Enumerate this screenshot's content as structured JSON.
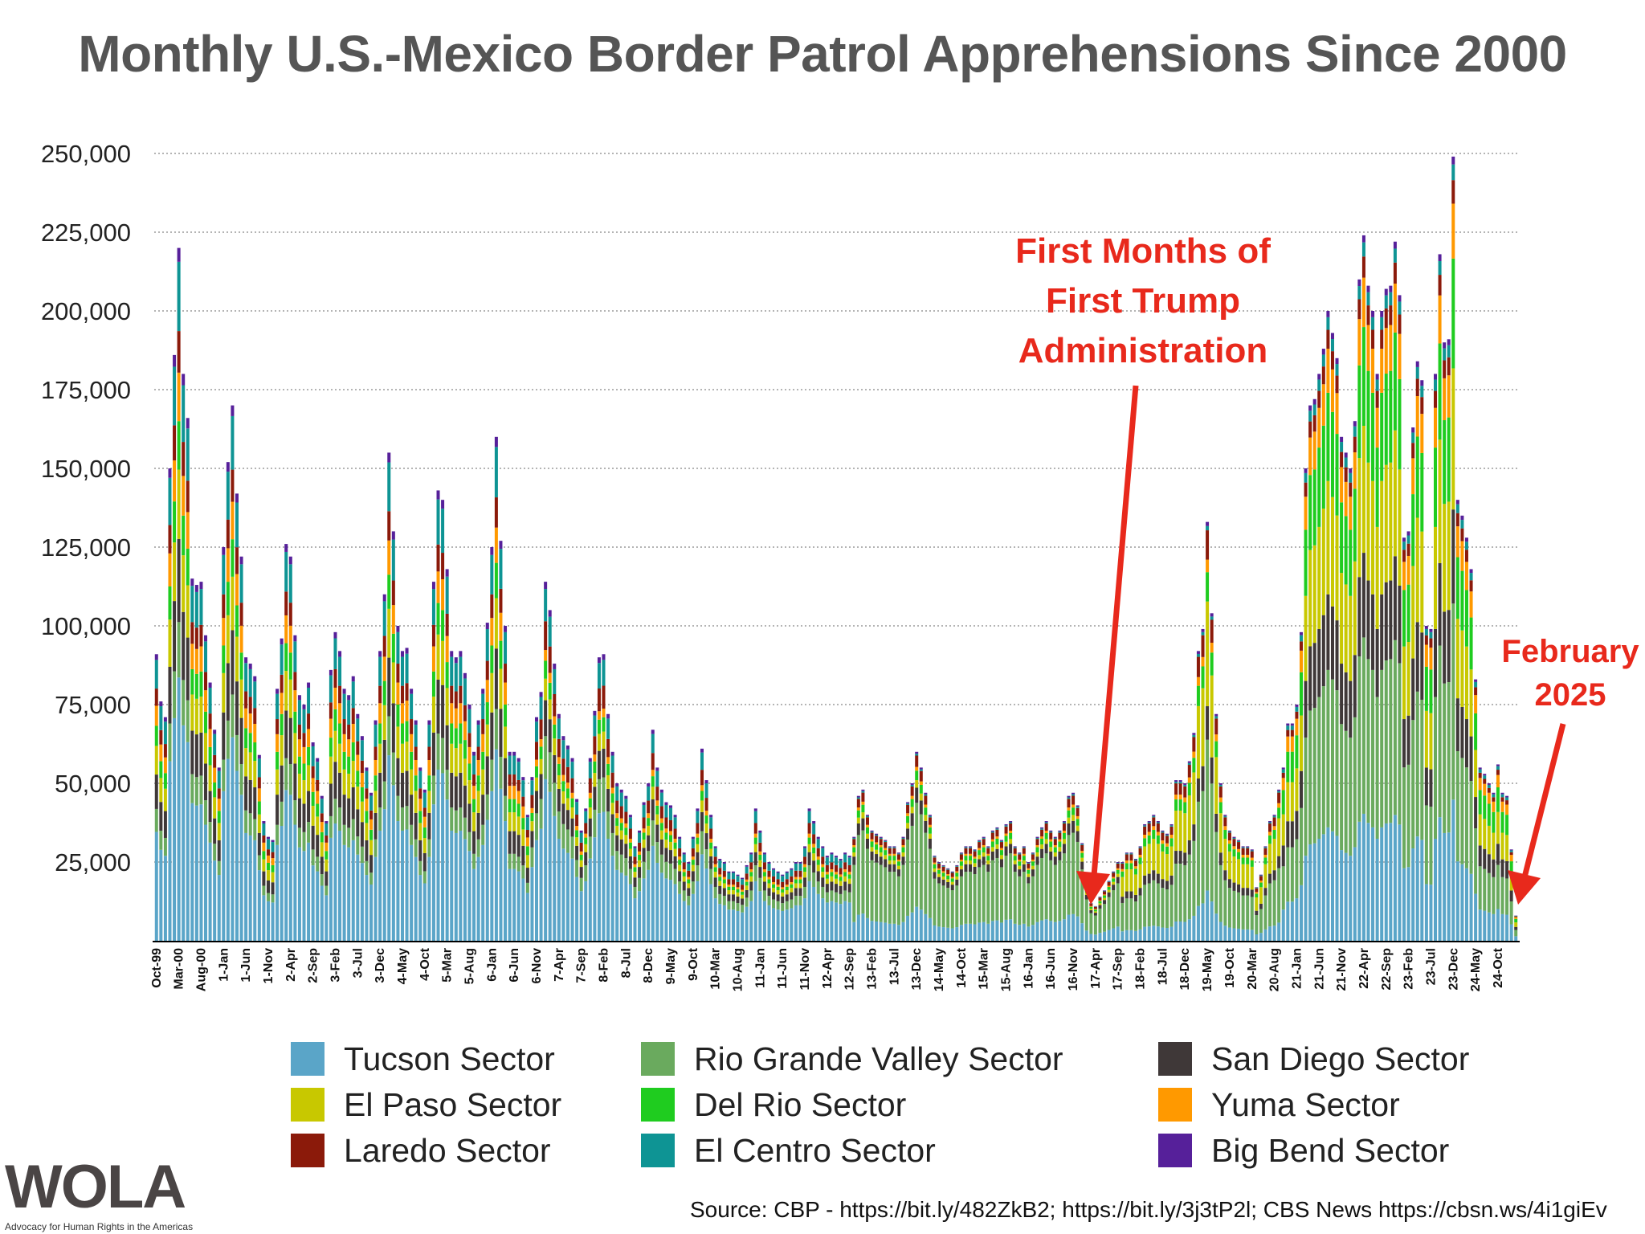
{
  "title": "Monthly U.S.-Mexico Border Patrol Apprehensions Since 2000",
  "annotations": {
    "trump_lines": [
      "First Months of",
      "First Trump",
      "Administration"
    ],
    "feb_lines": [
      "February",
      "2025"
    ]
  },
  "source": "Source: CBP - https://bit.ly/482ZkB2; https://bit.ly/3j3tP2l; CBS News https://cbsn.ws/4i1giEv",
  "logo": {
    "text": "WOLA",
    "subtitle": "Advocacy for Human Rights in the Americas"
  },
  "chart_data": {
    "type": "bar",
    "stacked": true,
    "title": "Monthly U.S.-Mexico Border Patrol Apprehensions Since 2000",
    "xlabel": "",
    "ylabel": "",
    "ylim": [
      0,
      250000
    ],
    "yticks": [
      25000,
      50000,
      75000,
      100000,
      125000,
      150000,
      175000,
      200000,
      225000,
      250000
    ],
    "ytick_labels": [
      "25,000",
      "50,000",
      "75,000",
      "100,000",
      "125,000",
      "150,000",
      "175,000",
      "200,000",
      "225,000",
      "250,000"
    ],
    "grid": true,
    "legend_position": "bottom",
    "start_month": "Oct-99",
    "end_month": "Feb-25",
    "xtick_every": 5,
    "xtick_labels": [
      "Oct-99",
      "Mar-00",
      "Aug-00",
      "1-Jan",
      "1-Jun",
      "1-Nov",
      "2-Apr",
      "2-Sep",
      "3-Feb",
      "3-Jul",
      "3-Dec",
      "4-May",
      "4-Oct",
      "5-Mar",
      "5-Aug",
      "6-Jan",
      "6-Jun",
      "6-Nov",
      "7-Apr",
      "7-Sep",
      "8-Feb",
      "8-Jul",
      "8-Dec",
      "9-May",
      "9-Oct",
      "10-Mar",
      "10-Aug",
      "11-Jan",
      "11-Jun",
      "11-Nov",
      "12-Apr",
      "12-Sep",
      "13-Feb",
      "13-Jul",
      "13-Dec",
      "14-May",
      "14-Oct",
      "15-Mar",
      "15-Aug",
      "16-Jan",
      "16-Jun",
      "16-Nov",
      "17-Apr",
      "17-Sep",
      "18-Feb",
      "18-Jul",
      "18-Dec",
      "19-May",
      "19-Oct",
      "20-Mar",
      "20-Aug",
      "21-Jan",
      "21-Jun",
      "21-Nov",
      "22-Apr",
      "22-Sep",
      "23-Feb",
      "23-Jul",
      "23-Dec",
      "24-May",
      "24-Oct"
    ],
    "series_stack_order": [
      "Tucson Sector",
      "Rio Grande Valley Sector",
      "San Diego Sector",
      "El Paso Sector",
      "Del Rio Sector",
      "Yuma Sector",
      "Laredo Sector",
      "El Centro Sector",
      "Big Bend Sector"
    ],
    "legend": [
      {
        "name": "Tucson Sector",
        "color": "#5aa5c8"
      },
      {
        "name": "El Paso Sector",
        "color": "#c8c800"
      },
      {
        "name": "Laredo Sector",
        "color": "#8b1a0a"
      },
      {
        "name": "Rio Grande Valley Sector",
        "color": "#6aaa5e"
      },
      {
        "name": "Del Rio Sector",
        "color": "#1fcc1f"
      },
      {
        "name": "El Centro Sector",
        "color": "#0e9494"
      },
      {
        "name": "San Diego Sector",
        "color": "#3f3838"
      },
      {
        "name": "Yuma Sector",
        "color": "#ff9900"
      },
      {
        "name": "Big Bend Sector",
        "color": "#56209a"
      }
    ],
    "monthly_totals_thousands": [
      91,
      76,
      71,
      150,
      186,
      220,
      180,
      166,
      115,
      113,
      114,
      97,
      82,
      67,
      55,
      125,
      152,
      170,
      142,
      122,
      90,
      88,
      84,
      59,
      38,
      33,
      32,
      80,
      96,
      126,
      122,
      97,
      78,
      75,
      82,
      63,
      58,
      46,
      38,
      86,
      98,
      92,
      80,
      78,
      84,
      72,
      65,
      55,
      47,
      70,
      92,
      110,
      155,
      130,
      100,
      92,
      93,
      80,
      70,
      55,
      48,
      70,
      114,
      143,
      140,
      118,
      92,
      90,
      92,
      85,
      75,
      60,
      70,
      80,
      101,
      125,
      160,
      127,
      100,
      60,
      60,
      58,
      52,
      40,
      52,
      71,
      79,
      114,
      105,
      88,
      72,
      65,
      62,
      58,
      45,
      35,
      42,
      58,
      73,
      90,
      91,
      72,
      60,
      50,
      48,
      46,
      40,
      30,
      35,
      44,
      50,
      67,
      55,
      48,
      44,
      43,
      40,
      33,
      28,
      25,
      33,
      42,
      61,
      51,
      40,
      30,
      26,
      25,
      22,
      22,
      21,
      20,
      24,
      28,
      42,
      35,
      28,
      25,
      23,
      22,
      21,
      22,
      23,
      25,
      25,
      30,
      42,
      38,
      33,
      30,
      27,
      28,
      27,
      26,
      28,
      27,
      33,
      46,
      48,
      40,
      35,
      34,
      33,
      32,
      30,
      30,
      28,
      33,
      44,
      50,
      60,
      55,
      47,
      40,
      27,
      25,
      24,
      23,
      22,
      24,
      28,
      30,
      30,
      29,
      32,
      33,
      30,
      35,
      36,
      32,
      37,
      38,
      30,
      28,
      30,
      25,
      28,
      33,
      36,
      38,
      35,
      33,
      35,
      38,
      46,
      47,
      43,
      31,
      18,
      12,
      11,
      14,
      16,
      19,
      22,
      25,
      25,
      28,
      28,
      26,
      30,
      37,
      38,
      40,
      38,
      35,
      34,
      37,
      51,
      51,
      50,
      57,
      66,
      92,
      99,
      133,
      104,
      72,
      50,
      40,
      35,
      33,
      32,
      30,
      30,
      29,
      17,
      21,
      30,
      38,
      40,
      48,
      55,
      69,
      69,
      75,
      98,
      150,
      170,
      172,
      180,
      188,
      200,
      193,
      185,
      160,
      155,
      150,
      165,
      210,
      224,
      208,
      200,
      180,
      200,
      207,
      208,
      222,
      205,
      128,
      130,
      163,
      184,
      178,
      100,
      99,
      180,
      218,
      190,
      191,
      249,
      140,
      135,
      128,
      118,
      83,
      55,
      53,
      50,
      47,
      56,
      47,
      46,
      29,
      8
    ],
    "sector_share_periods": [
      {
        "from": "Oct-99",
        "shares": [
          0.38,
          0.08,
          0.12,
          0.1,
          0.07,
          0.07,
          0.06,
          0.1,
          0.02
        ]
      },
      {
        "from": "Oct-06",
        "shares": [
          0.45,
          0.12,
          0.1,
          0.06,
          0.05,
          0.03,
          0.08,
          0.09,
          0.02
        ]
      },
      {
        "from": "Oct-12",
        "shares": [
          0.18,
          0.55,
          0.08,
          0.04,
          0.05,
          0.02,
          0.06,
          0.01,
          0.01
        ]
      },
      {
        "from": "Oct-17",
        "shares": [
          0.12,
          0.36,
          0.08,
          0.25,
          0.07,
          0.03,
          0.07,
          0.01,
          0.01
        ]
      },
      {
        "from": "Oct-20",
        "shares": [
          0.18,
          0.25,
          0.12,
          0.18,
          0.14,
          0.07,
          0.03,
          0.02,
          0.01
        ]
      }
    ]
  }
}
